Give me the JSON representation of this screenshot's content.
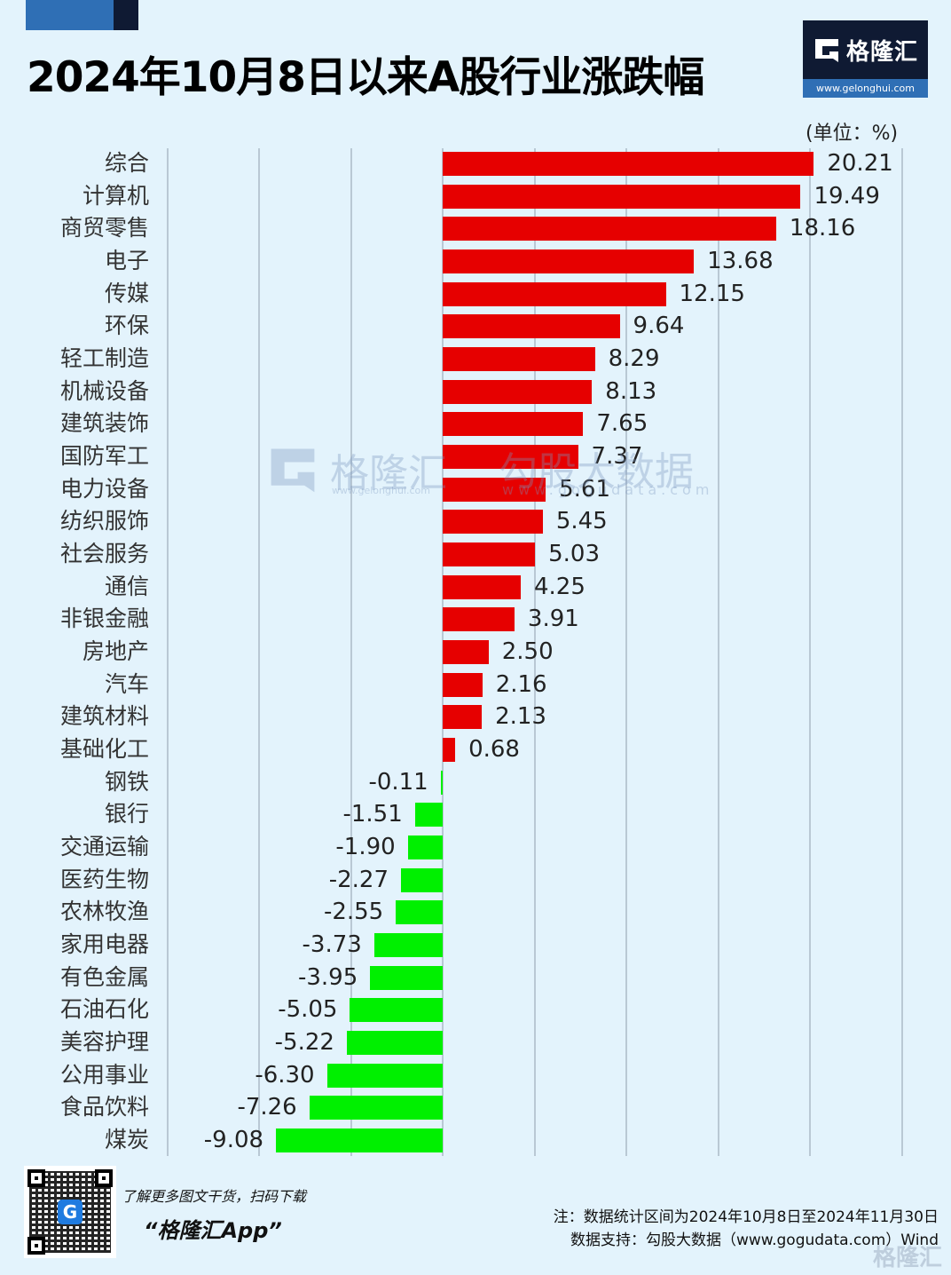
{
  "header": {
    "title": "2024年10月8日以来A股行业涨跌幅",
    "logo_name": "格隆汇",
    "logo_url": "www.gelonghui.com",
    "unit": "(单位：%)"
  },
  "colors": {
    "background": "#e3f3fc",
    "positive": "#e60000",
    "negative": "#00f000",
    "gridline": "#b9c8d4",
    "brand_dark": "#0f1a33",
    "brand_blue": "#2f6fb5"
  },
  "watermarks": {
    "left_name": "格隆汇",
    "left_url": "www.gelonghui.com",
    "right_name": "勾股大数据",
    "right_url": "www.gogudata.com",
    "bottom_right": "格隆汇"
  },
  "footer": {
    "promo_line1": "了解更多图文干货，扫码下载",
    "promo_line2": "“格隆汇App”",
    "note_line1": "注：数据统计区间为2024年10月8日至2024年11月30日",
    "note_line2": "数据支持：勾股大数据（www.gogudata.com）Wind"
  },
  "chart_data": {
    "type": "bar",
    "orientation": "horizontal",
    "title": "2024年10月8日以来A股行业涨跌幅",
    "unit": "%",
    "xlabel": "",
    "ylabel": "",
    "xlim": [
      -15,
      25
    ],
    "grid": true,
    "grid_ticks": [
      -15,
      -10,
      -5,
      0,
      5,
      10,
      15,
      20,
      25
    ],
    "categories": [
      "综合",
      "计算机",
      "商贸零售",
      "电子",
      "传媒",
      "环保",
      "轻工制造",
      "机械设备",
      "建筑装饰",
      "国防军工",
      "电力设备",
      "纺织服饰",
      "社会服务",
      "通信",
      "非银金融",
      "房地产",
      "汽车",
      "建筑材料",
      "基础化工",
      "钢铁",
      "银行",
      "交通运输",
      "医药生物",
      "农林牧渔",
      "家用电器",
      "有色金属",
      "石油石化",
      "美容护理",
      "公用事业",
      "食品饮料",
      "煤炭"
    ],
    "values": [
      20.21,
      19.49,
      18.16,
      13.68,
      12.15,
      9.64,
      8.29,
      8.13,
      7.65,
      7.37,
      5.61,
      5.45,
      5.03,
      4.25,
      3.91,
      2.5,
      2.16,
      2.13,
      0.68,
      -0.11,
      -1.51,
      -1.9,
      -2.27,
      -2.55,
      -3.73,
      -3.95,
      -5.05,
      -5.22,
      -6.3,
      -7.26,
      -9.08
    ],
    "labels": [
      "20.21",
      "19.49",
      "18.16",
      "13.68",
      "12.15",
      "9.64",
      "8.29",
      "8.13",
      "7.65",
      "7.37",
      "5.61",
      "5.45",
      "5.03",
      "4.25",
      "3.91",
      "2.50",
      "2.16",
      "2.13",
      "0.68",
      "-0.11",
      "-1.51",
      "-1.90",
      "-2.27",
      "-2.55",
      "-3.73",
      "-3.95",
      "-5.05",
      "-5.22",
      "-6.30",
      "-7.26",
      "-9.08"
    ],
    "colors": {
      "positive": "#e60000",
      "negative": "#00f000"
    }
  }
}
